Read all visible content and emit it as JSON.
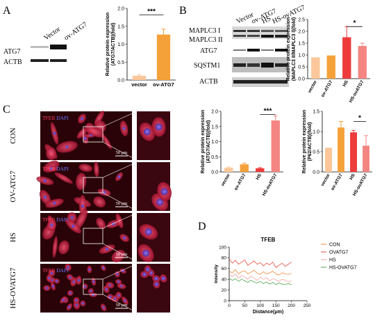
{
  "panels": {
    "A": {
      "letter": "A",
      "blot_lanes": [
        "Vector",
        "ov-ATG7"
      ],
      "blot_rows": [
        "ATG7",
        "ACTB"
      ]
    },
    "B": {
      "letter": "B",
      "blot_lanes": [
        "Vector",
        "ov-ATG7",
        "HS",
        "HS-ovATG7"
      ],
      "blot_rows": [
        "MAPLC3 I",
        "MAPLC3 II",
        "ATG7",
        "SQSTM1",
        "ACTB"
      ]
    },
    "C": {
      "letter": "C",
      "row_labels": [
        "CON",
        "OV-ATG7",
        "HS",
        "HS-OVATG7"
      ],
      "stain_tfeb": "TFEB",
      "stain_dapi": "DAPI",
      "scale": "50 μm"
    },
    "D": {
      "letter": "D"
    }
  },
  "colors": {
    "vector": "#fcc79a",
    "ov": "#f5a13a",
    "hs": "#ee3b3b",
    "hsov": "#f48583",
    "error": "#e07070"
  },
  "chart_data": [
    {
      "id": "A-bar",
      "type": "bar",
      "ylabel": "Relative protein expression\n(ATG7/ACTB)(fold)",
      "categories": [
        "vector",
        "ov-ATG7"
      ],
      "values": [
        0.12,
        1.27
      ],
      "errors": [
        0.03,
        0.15
      ],
      "ylim": [
        0,
        2.0
      ],
      "yticks": [
        "0.0",
        "0.5",
        "1.0",
        "1.5",
        "2.0"
      ],
      "significance": "***"
    },
    {
      "id": "B-bar",
      "type": "bar",
      "ylabel": "Relative protein expression\n(MAPLC3 II/MAPLC3 I)(fold)",
      "categories": [
        "vector",
        "ov-ATG7",
        "HS",
        "HS-ovATG7"
      ],
      "values": [
        0.9,
        0.98,
        1.75,
        1.38
      ],
      "errors": [
        0,
        0,
        0.45,
        0.12
      ],
      "ylim": [
        0,
        2.5
      ],
      "yticks": [
        "0.0",
        "0.5",
        "1.0",
        "1.5",
        "2.0",
        "2.5"
      ],
      "significance": "*"
    },
    {
      "id": "C-bar-atg7",
      "type": "bar",
      "ylabel": "Relative protein expression\n(ATG7/ACTB)(fold)",
      "categories": [
        "vector",
        "ov-ATG7",
        "HS",
        "HS-ovATG7"
      ],
      "values": [
        0.14,
        0.25,
        0.12,
        1.7
      ],
      "errors": [
        0.02,
        0.04,
        0.02,
        0.15
      ],
      "ylim": [
        0,
        2.0
      ],
      "yticks": [
        "0.0",
        "0.5",
        "1.0",
        "1.5",
        "2.0"
      ],
      "significance": "***"
    },
    {
      "id": "C-bar-p62",
      "type": "bar",
      "ylabel": "Relative protein expression\n(P62/ACTB)(fold)",
      "categories": [
        "vector",
        "ov-ATG7",
        "HS",
        "HS-ovATG7"
      ],
      "values": [
        0.6,
        1.1,
        0.98,
        0.65
      ],
      "errors": [
        0,
        0.15,
        0.05,
        0.25
      ],
      "ylim": [
        0,
        1.5
      ],
      "yticks": [
        "0.0",
        "0.5",
        "1.0",
        "1.5"
      ],
      "significance": "*"
    },
    {
      "id": "D-line",
      "type": "line",
      "title": "TFEB",
      "xlabel": "Distance(μm)",
      "ylabel": "Intensity",
      "xlim": [
        0,
        250
      ],
      "ylim": [
        0,
        100
      ],
      "xticks": [
        0,
        50,
        100,
        150,
        200,
        250
      ],
      "yticks": [
        0,
        20,
        40,
        60,
        80,
        100
      ],
      "series": [
        {
          "name": "CON",
          "color": "#f28a3c",
          "x": [
            0,
            10,
            20,
            30,
            40,
            50,
            60,
            70,
            80,
            90,
            100,
            110,
            120,
            130,
            140,
            150,
            160,
            170,
            180,
            190,
            200
          ],
          "y": [
            55,
            52,
            58,
            50,
            54,
            56,
            50,
            53,
            57,
            51,
            49,
            54,
            50,
            52,
            55,
            50,
            48,
            52,
            50,
            49,
            51
          ]
        },
        {
          "name": "OVATG7",
          "color": "#e8493a",
          "x": [
            0,
            10,
            20,
            30,
            40,
            50,
            60,
            70,
            80,
            90,
            100,
            110,
            120,
            130,
            140,
            150,
            160,
            170,
            180,
            190,
            200
          ],
          "y": [
            78,
            70,
            75,
            68,
            72,
            76,
            66,
            70,
            74,
            68,
            71,
            65,
            70,
            67,
            72,
            62,
            66,
            70,
            64,
            68,
            72
          ]
        },
        {
          "name": "HS",
          "color": "#f4a0a0",
          "x": [
            0,
            10,
            20,
            30,
            40,
            50,
            60,
            70,
            80,
            90,
            100,
            110,
            120,
            130,
            140,
            150,
            160,
            170,
            180,
            190,
            200
          ],
          "y": [
            48,
            45,
            50,
            42,
            47,
            44,
            40,
            46,
            42,
            38,
            44,
            40,
            43,
            37,
            41,
            39,
            36,
            40,
            38,
            35,
            37
          ]
        },
        {
          "name": "HS-OVATG7",
          "color": "#4aa64a",
          "x": [
            0,
            10,
            20,
            30,
            40,
            50,
            60,
            70,
            80,
            90,
            100,
            110,
            120,
            130,
            140,
            150,
            160,
            170,
            180,
            190,
            200
          ],
          "y": [
            42,
            38,
            41,
            36,
            40,
            37,
            34,
            38,
            35,
            33,
            36,
            32,
            35,
            31,
            34,
            30,
            33,
            31,
            30,
            32,
            30
          ]
        }
      ]
    }
  ]
}
